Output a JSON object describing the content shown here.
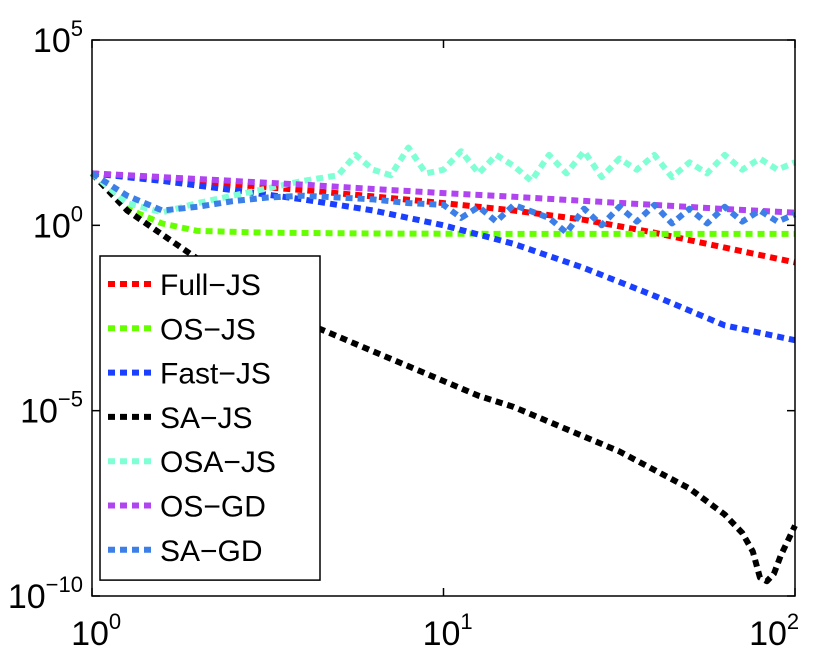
{
  "chart_data": {
    "type": "line",
    "title": "",
    "xlabel": "",
    "ylabel": "",
    "xscale": "log",
    "yscale": "log",
    "xlim": [
      1,
      100
    ],
    "ylim": [
      1e-10,
      100000.0
    ],
    "grid": false,
    "legend_position": "bottom-left",
    "x_ticks": [
      {
        "base": "10",
        "exp": "0",
        "value": 1
      },
      {
        "base": "10",
        "exp": "1",
        "value": 10
      },
      {
        "base": "10",
        "exp": "2",
        "value": 100
      }
    ],
    "y_ticks": [
      {
        "base": "10",
        "exp": "5",
        "value": 5
      },
      {
        "base": "10",
        "exp": "0",
        "value": 0
      },
      {
        "base": "10",
        "exp": "−5",
        "value": -5
      },
      {
        "base": "10",
        "exp": "−10",
        "value": -10
      }
    ],
    "series": [
      {
        "name": "Full−JS",
        "color": "#ff0000",
        "log10x": [
          0,
          0.2,
          0.4,
          0.6,
          0.8,
          1.0,
          1.2,
          1.4,
          1.6,
          1.8,
          2.0
        ],
        "log10y": [
          1.4,
          1.25,
          1.1,
          0.95,
          0.78,
          0.6,
          0.4,
          0.15,
          -0.2,
          -0.6,
          -1.0
        ]
      },
      {
        "name": "OS−JS",
        "color": "#66ff00",
        "log10x": [
          0,
          0.1,
          0.2,
          0.3,
          0.5,
          0.8,
          1.2,
          1.6,
          2.0
        ],
        "log10y": [
          1.4,
          0.45,
          0.05,
          -0.15,
          -0.2,
          -0.22,
          -0.23,
          -0.23,
          -0.23
        ]
      },
      {
        "name": "Fast−JS",
        "color": "#1a3fff",
        "log10x": [
          0,
          0.2,
          0.4,
          0.6,
          0.8,
          1.0,
          1.2,
          1.4,
          1.6,
          1.8,
          2.0
        ],
        "log10y": [
          1.4,
          1.2,
          0.95,
          0.7,
          0.4,
          0.0,
          -0.5,
          -1.15,
          -1.9,
          -2.7,
          -3.1
        ]
      },
      {
        "name": "SA−JS",
        "color": "#000000",
        "log10x": [
          0,
          0.1,
          0.2,
          0.3,
          0.4,
          0.5,
          0.6,
          0.7,
          0.8,
          0.9,
          1.0,
          1.1,
          1.2,
          1.3,
          1.4,
          1.5,
          1.6,
          1.7,
          1.8,
          1.85,
          1.88,
          1.9,
          1.92,
          1.94,
          1.96,
          1.98,
          2.0
        ],
        "log10y": [
          1.4,
          0.4,
          -0.25,
          -0.9,
          -1.5,
          -2.1,
          -2.6,
          -3.0,
          -3.4,
          -3.8,
          -4.2,
          -4.6,
          -4.9,
          -5.3,
          -5.7,
          -6.1,
          -6.6,
          -7.1,
          -7.8,
          -8.3,
          -8.8,
          -9.5,
          -9.6,
          -9.4,
          -8.9,
          -8.5,
          -8.1
        ]
      },
      {
        "name": "OSA−JS",
        "color": "#7fffd4",
        "log10x": [
          0,
          0.1,
          0.2,
          0.3,
          0.4,
          0.5,
          0.6,
          0.7,
          0.75,
          0.8,
          0.85,
          0.9,
          0.95,
          1.0,
          1.05,
          1.1,
          1.15,
          1.2,
          1.25,
          1.3,
          1.35,
          1.4,
          1.45,
          1.5,
          1.55,
          1.6,
          1.65,
          1.7,
          1.75,
          1.8,
          1.85,
          1.9,
          1.95,
          2.0
        ],
        "log10y": [
          1.4,
          0.6,
          0.35,
          0.6,
          0.8,
          1.0,
          1.2,
          1.35,
          1.9,
          1.5,
          1.35,
          2.1,
          1.4,
          1.5,
          2.0,
          1.4,
          1.9,
          1.6,
          1.2,
          1.9,
          1.4,
          2.0,
          1.3,
          1.8,
          1.5,
          1.9,
          1.3,
          1.7,
          1.4,
          1.9,
          1.5,
          1.8,
          1.5,
          1.7
        ]
      },
      {
        "name": "OS−GD",
        "color": "#b044f0",
        "log10x": [
          0,
          0.2,
          0.4,
          0.6,
          0.8,
          1.0,
          1.2,
          1.4,
          1.6,
          1.8,
          2.0
        ],
        "log10y": [
          1.4,
          1.3,
          1.2,
          1.1,
          0.98,
          0.87,
          0.77,
          0.66,
          0.55,
          0.44,
          0.34
        ]
      },
      {
        "name": "SA−GD",
        "color": "#3d7fe8",
        "log10x": [
          0,
          0.1,
          0.2,
          0.3,
          0.4,
          0.5,
          0.6,
          0.7,
          0.8,
          0.9,
          1.0,
          1.05,
          1.1,
          1.15,
          1.2,
          1.3,
          1.35,
          1.4,
          1.45,
          1.5,
          1.55,
          1.6,
          1.65,
          1.7,
          1.75,
          1.8,
          1.85,
          1.9,
          1.95,
          2.0
        ],
        "log10y": [
          1.4,
          0.8,
          0.4,
          0.5,
          0.65,
          0.75,
          0.8,
          0.75,
          0.7,
          0.6,
          0.55,
          0.2,
          0.5,
          0.1,
          0.55,
          0.2,
          -0.2,
          0.45,
          0.0,
          0.5,
          0.1,
          0.55,
          0.05,
          0.45,
          0.05,
          0.5,
          0.1,
          0.4,
          0.1,
          0.3
        ]
      }
    ]
  }
}
